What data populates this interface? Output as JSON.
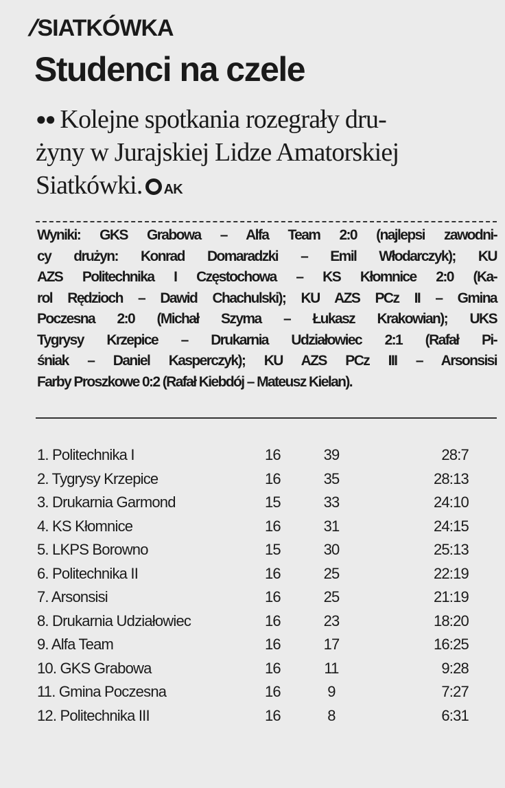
{
  "kicker": "SIATKÓWKA",
  "headline": "Studenci na czele",
  "lead": {
    "lines": [
      "Kolejne spotkania rozegrały dru-",
      "żyny w Jurajskiej Lidze Amatorskiej",
      "Siatkówki."
    ],
    "author": "AK"
  },
  "results": {
    "lines": [
      "Wyniki: GKS Grabowa – Alfa Team 2:0 (najlepsi zawodni-",
      "cy drużyn: Konrad Domaradzki – Emil Włodarczyk); KU",
      "AZS Politechnika I Częstochowa – KS Kłomnice 2:0 (Ka-",
      "rol Rędzioch – Dawid Chachulski); KU AZS PCz II – Gmina",
      "Poczesna 2:0 (Michał Szyma – Łukasz Krakowian); UKS",
      "Tygrysy Krzepice – Drukarnia Udziałowiec 2:1 (Rafał Pi-",
      "śniak – Daniel Kasperczyk); KU AZS PCz III – Arsonsisi",
      "Farby Proszkowe 0:2 (Rafał Kiebdój – Mateusz Kielan)."
    ]
  },
  "standings": [
    {
      "team": "1. Politechnika I",
      "games": "16",
      "points": "39",
      "sets": "28:7"
    },
    {
      "team": "2. Tygrysy Krzepice",
      "games": "16",
      "points": "35",
      "sets": "28:13"
    },
    {
      "team": "3. Drukarnia Garmond",
      "games": "15",
      "points": "33",
      "sets": "24:10"
    },
    {
      "team": "4. KS Kłomnice",
      "games": "16",
      "points": "31",
      "sets": "24:15"
    },
    {
      "team": "5. LKPS Borowno",
      "games": "15",
      "points": "30",
      "sets": "25:13"
    },
    {
      "team": "6. Politechnika II",
      "games": "16",
      "points": "25",
      "sets": "22:19"
    },
    {
      "team": "7. Arsonsisi",
      "games": "16",
      "points": "25",
      "sets": "21:19"
    },
    {
      "team": "8. Drukarnia Udziałowiec",
      "games": "16",
      "points": "23",
      "sets": "18:20"
    },
    {
      "team": "9. Alfa Team",
      "games": "16",
      "points": "17",
      "sets": "16:25"
    },
    {
      "team": "10. GKS Grabowa",
      "games": "16",
      "points": "11",
      "sets": "9:28"
    },
    {
      "team": "11. Gmina Poczesna",
      "games": "16",
      "points": "9",
      "sets": "7:27"
    },
    {
      "team": "12. Politechnika III",
      "games": "16",
      "points": "8",
      "sets": "6:31"
    }
  ]
}
